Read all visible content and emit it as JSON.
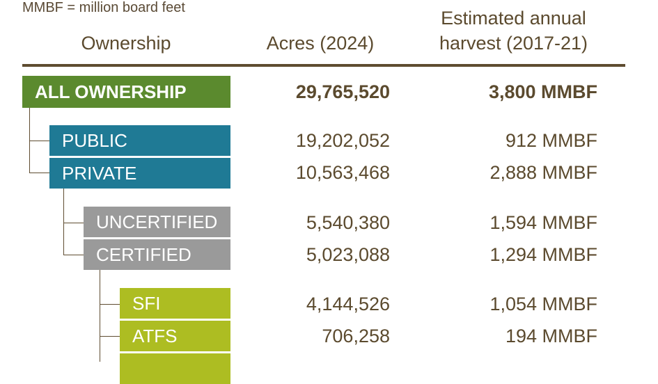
{
  "note": "MMBF = million board feet",
  "headers": {
    "ownership": "Ownership",
    "acres": "Acres (2024)",
    "harvest_line1": "Estimated annual",
    "harvest_line2": "harvest (2017-21)"
  },
  "colors": {
    "all": "#5b8a2e",
    "public_private": "#1f7a95",
    "certification": "#9a9a9a",
    "programs": "#adbd22",
    "text": "#5b4a2e"
  },
  "rows": [
    {
      "label": "ALL OWNERSHIP",
      "acres": "29,765,520",
      "harvest": "3,800 MMBF"
    },
    {
      "label": "PUBLIC",
      "acres": "19,202,052",
      "harvest": "912 MMBF"
    },
    {
      "label": "PRIVATE",
      "acres": "10,563,468",
      "harvest": "2,888 MMBF"
    },
    {
      "label": "UNCERTIFIED",
      "acres": "5,540,380",
      "harvest": "1,594 MMBF"
    },
    {
      "label": "CERTIFIED",
      "acres": "5,023,088",
      "harvest": "1,294 MMBF"
    },
    {
      "label": "SFI",
      "acres": "4,144,526",
      "harvest": "1,054 MMBF"
    },
    {
      "label": "ATFS",
      "acres": "706,258",
      "harvest": "194 MMBF"
    }
  ]
}
